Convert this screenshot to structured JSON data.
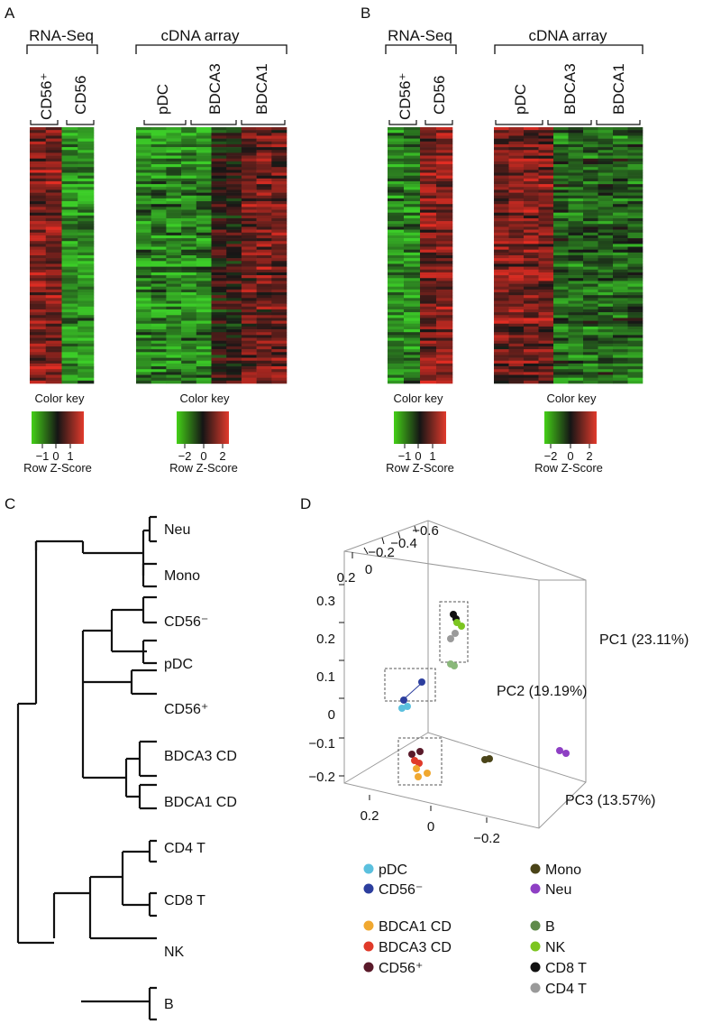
{
  "panels": {
    "A": "A",
    "B": "B",
    "C": "C",
    "D": "D"
  },
  "heatmaps": {
    "rna_label": "RNA-Seq",
    "cdna_label": "cDNA array",
    "cd56pos": "CD56⁺",
    "cd56": "CD56",
    "pdc": "pDC",
    "bdca3": "BDCA3",
    "bdca1": "BDCA1",
    "color_key": "Color key",
    "row_z": "Row Z-Score",
    "rna_ticks": [
      "−1",
      "0",
      "1"
    ],
    "cdna_ticks": [
      "−2",
      "0",
      "2"
    ],
    "colors": {
      "green": "#2e7d32",
      "black": "#151515",
      "red": "#c62828"
    }
  },
  "dendrogram": {
    "leaves": [
      "Neu",
      "Mono",
      "CD56⁻",
      "pDC",
      "CD56⁺",
      "BDCA3 CD",
      "BDCA1 CD",
      "CD4 T",
      "CD8 T",
      "NK",
      "B"
    ]
  },
  "pca": {
    "axes": {
      "pc1": "PC1 (23.11%)",
      "pc2": "PC2 (19.19%)",
      "pc3": "PC3 (13.57%)"
    },
    "ticks_top": [
      "−0.6",
      "−0.4",
      "−0.2",
      "0",
      "0.2"
    ],
    "ticks_left": [
      "0.3",
      "0.2",
      "0.1",
      "0",
      "−0.1",
      "−0.2"
    ],
    "ticks_bottom": [
      "0.2",
      "0",
      "−0.2"
    ],
    "legend": [
      {
        "label": "pDC",
        "color": "#5bc0de"
      },
      {
        "label": "CD56⁻",
        "color": "#2c3e9e"
      },
      {
        "label": "BDCA1 CD",
        "color": "#f0a830"
      },
      {
        "label": "BDCA3 CD",
        "color": "#e03a2a"
      },
      {
        "label": "CD56⁺",
        "color": "#5a1a2a"
      },
      {
        "label": "Mono",
        "color": "#4a4418"
      },
      {
        "label": "Neu",
        "color": "#8e3fc4"
      },
      {
        "label": "B",
        "color": "#5f8a4a"
      },
      {
        "label": "NK",
        "color": "#7cc520"
      },
      {
        "label": "CD8 T",
        "color": "#111111"
      },
      {
        "label": "CD4 T",
        "color": "#9a9a9a"
      }
    ]
  }
}
